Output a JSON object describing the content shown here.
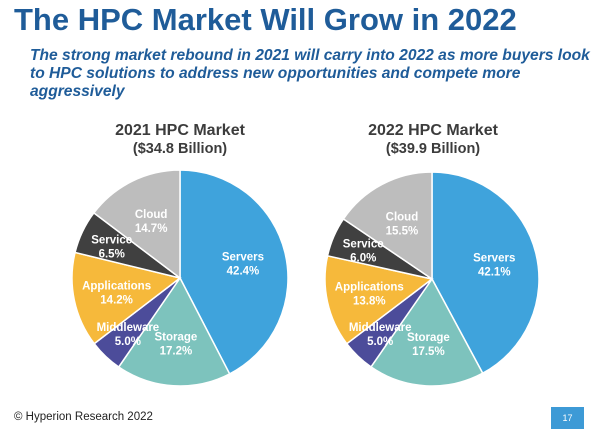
{
  "title": "The HPC Market Will Grow in 2022",
  "subtitle": "The strong market rebound in 2021 will carry into 2022 as more buyers look to HPC solutions to address new opportunities and compete more aggressively",
  "footer": "© Hyperion Research 2022",
  "page_number": "17",
  "chart_data": [
    {
      "type": "pie",
      "title": "2021 HPC Market",
      "subtitle": "($34.8 Billion)",
      "slices": [
        {
          "label": "Servers",
          "value": 42.4,
          "value_label": "42.4%",
          "color": "#3fa3dc"
        },
        {
          "label": "Storage",
          "value": 17.2,
          "value_label": "17.2%",
          "color": "#7dc3bd"
        },
        {
          "label": "Middleware",
          "value": 5.0,
          "value_label": "5.0%",
          "color": "#4c4c9a"
        },
        {
          "label": "Applications",
          "value": 14.2,
          "value_label": "14.2%",
          "color": "#f6b93b"
        },
        {
          "label": "Service",
          "value": 6.5,
          "value_label": "6.5%",
          "color": "#404040"
        },
        {
          "label": "Cloud",
          "value": 14.7,
          "value_label": "14.7%",
          "color": "#bdbdbd"
        }
      ]
    },
    {
      "type": "pie",
      "title": "2022 HPC Market",
      "subtitle": "($39.9 Billion)",
      "slices": [
        {
          "label": "Servers",
          "value": 42.1,
          "value_label": "42.1%",
          "color": "#3fa3dc"
        },
        {
          "label": "Storage",
          "value": 17.5,
          "value_label": "17.5%",
          "color": "#7dc3bd"
        },
        {
          "label": "Middleware",
          "value": 5.0,
          "value_label": "5.0%",
          "color": "#4c4c9a"
        },
        {
          "label": "Applications",
          "value": 13.8,
          "value_label": "13.8%",
          "color": "#f6b93b"
        },
        {
          "label": "Service",
          "value": 6.0,
          "value_label": "6.0%",
          "color": "#404040"
        },
        {
          "label": "Cloud",
          "value": 15.5,
          "value_label": "15.5%",
          "color": "#bdbdbd"
        }
      ]
    }
  ]
}
